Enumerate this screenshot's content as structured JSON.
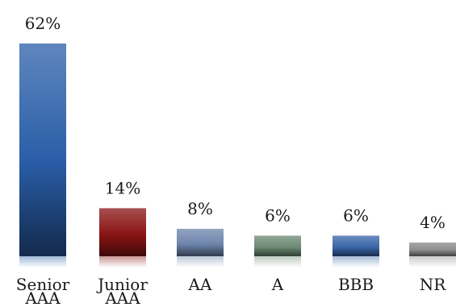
{
  "chart_data": {
    "type": "bar",
    "categories": [
      [
        "Senior",
        "AAA"
      ],
      [
        "Junior",
        "AAA"
      ],
      [
        "AA"
      ],
      [
        "A"
      ],
      [
        "BBB"
      ],
      [
        "NR"
      ]
    ],
    "values": [
      62,
      14,
      8,
      6,
      6,
      4
    ],
    "value_labels": [
      "62%",
      "14%",
      "8%",
      "6%",
      "6%",
      "4%"
    ],
    "colors": [
      "#2a5ea8",
      "#8a1414",
      "#6f86ad",
      "#6d8a74",
      "#3a66a8",
      "#8c8c8c"
    ],
    "title": "",
    "xlabel": "",
    "ylabel": "",
    "ylim": [
      0,
      62
    ],
    "grid": false,
    "legend": "none"
  }
}
